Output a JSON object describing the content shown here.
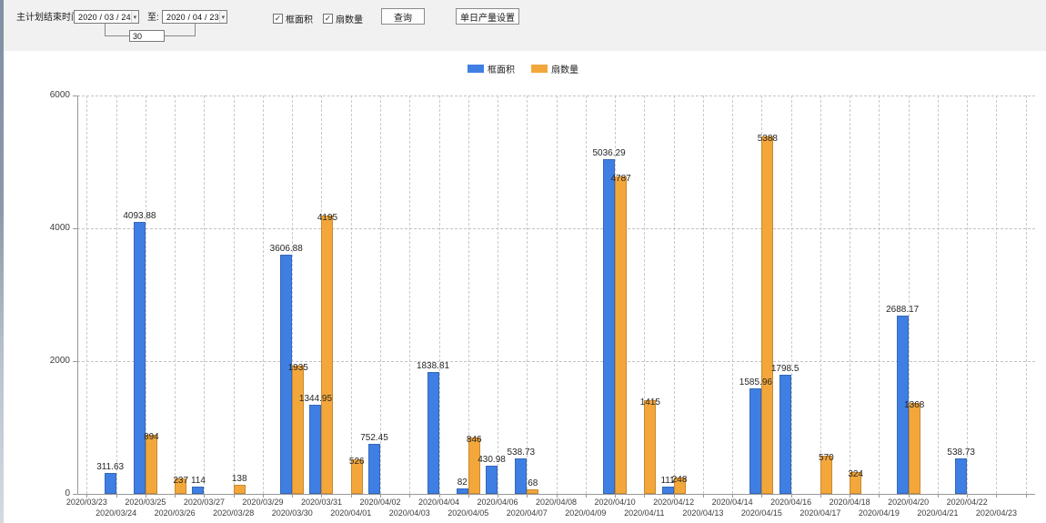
{
  "toolbar": {
    "end_time_label": "主计划结束时间:",
    "date_from": "2020 / 03 / 24",
    "to_label": "至:",
    "date_to": "2020 / 04 / 23",
    "interval_value": "30",
    "checkboxes": [
      {
        "label": "框面积",
        "checked": true
      },
      {
        "label": "扇数量",
        "checked": true
      }
    ],
    "query_button": "查询",
    "daily_output_button": "单日产量设置"
  },
  "icons": {
    "check": "✓",
    "dropdown_arrow": "▾"
  },
  "legend": {
    "items": [
      {
        "label": "框面积",
        "color": "#3f7fe3"
      },
      {
        "label": "扇数量",
        "color": "#f3a73b"
      }
    ]
  },
  "chart_data": {
    "type": "bar",
    "title": "",
    "xlabel": "",
    "ylabel": "",
    "ylim": [
      0,
      6000
    ],
    "yticks": [
      0,
      2000,
      4000,
      6000
    ],
    "grid": "dashed",
    "legend_position": "top-center",
    "categories": [
      "2020/03/23",
      "2020/03/24",
      "2020/03/25",
      "2020/03/26",
      "2020/03/27",
      "2020/03/28",
      "2020/03/29",
      "2020/03/30",
      "2020/03/31",
      "2020/04/01",
      "2020/04/02",
      "2020/04/03",
      "2020/04/04",
      "2020/04/05",
      "2020/04/06",
      "2020/04/07",
      "2020/04/08",
      "2020/04/09",
      "2020/04/10",
      "2020/04/11",
      "2020/04/12",
      "2020/04/13",
      "2020/04/14",
      "2020/04/15",
      "2020/04/16",
      "2020/04/17",
      "2020/04/18",
      "2020/04/19",
      "2020/04/20",
      "2020/04/21",
      "2020/04/22",
      "2020/04/23"
    ],
    "series": [
      {
        "name": "框面积",
        "color": "#3f7fe3",
        "values": [
          null,
          311.63,
          4093.88,
          null,
          114,
          null,
          null,
          3606.88,
          1344.95,
          null,
          752.45,
          null,
          1838.81,
          82,
          430.98,
          538.73,
          null,
          null,
          5036.29,
          null,
          111,
          null,
          null,
          1585.96,
          1798.5,
          null,
          null,
          null,
          2688.17,
          null,
          538.73,
          null
        ]
      },
      {
        "name": "扇数量",
        "color": "#f3a73b",
        "values": [
          null,
          null,
          894,
          237,
          null,
          138,
          null,
          1935,
          4195,
          526,
          null,
          null,
          null,
          846,
          null,
          68,
          null,
          null,
          4787,
          1415,
          248,
          null,
          null,
          5388,
          null,
          570,
          324,
          null,
          1368,
          null,
          null,
          null
        ]
      }
    ]
  }
}
